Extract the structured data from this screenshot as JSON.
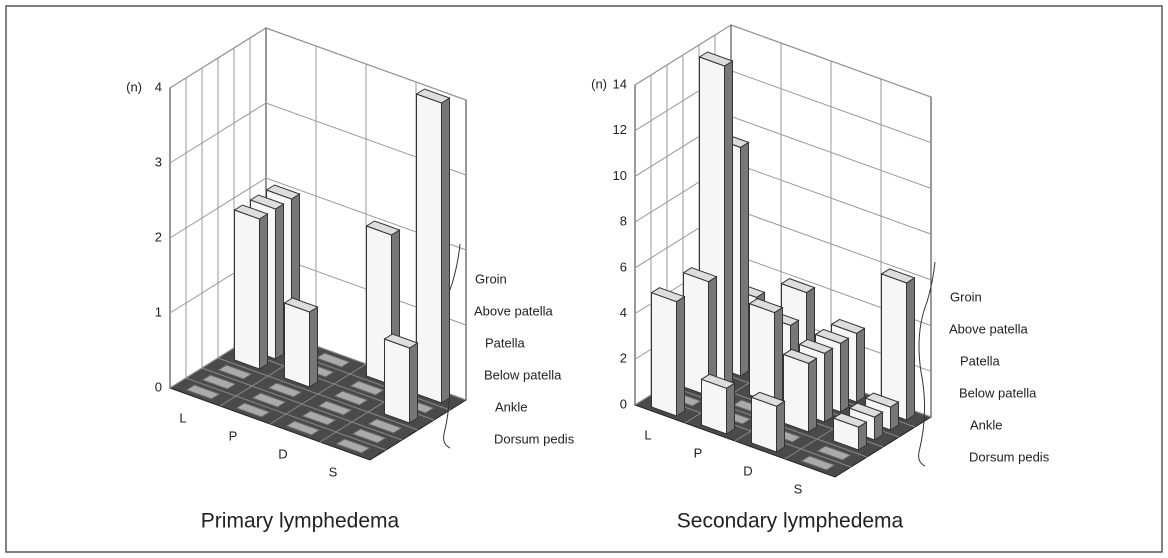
{
  "chart_data": [
    {
      "type": "bar3d",
      "title": "Primary lymphedema",
      "y_label": "(n)",
      "categories": [
        "L",
        "P",
        "D",
        "S"
      ],
      "depth_categories": [
        "Groin",
        "Above patella",
        "Patella",
        "Below patella",
        "Ankle",
        "Dorsum pedis"
      ],
      "values": [
        [
          2,
          2,
          2,
          0,
          0,
          0
        ],
        [
          0,
          0,
          1,
          0,
          0,
          0
        ],
        [
          2,
          0,
          0,
          0,
          0,
          0
        ],
        [
          4,
          0,
          1,
          0,
          0,
          0
        ]
      ],
      "ylim": [
        0,
        4
      ],
      "yticks": [
        0,
        1,
        2,
        3,
        4
      ],
      "grid": true
    },
    {
      "type": "bar3d",
      "title": "Secondary lymphedema",
      "y_label": "(n)",
      "categories": [
        "L",
        "P",
        "D",
        "S"
      ],
      "depth_categories": [
        "Groin",
        "Above patella",
        "Patella",
        "Below patella",
        "Ankle",
        "Dorsum pedis"
      ],
      "values": [
        [
          3,
          10,
          14,
          5,
          0,
          5
        ],
        [
          4,
          3,
          4,
          0,
          0,
          2
        ],
        [
          3,
          3,
          3,
          3,
          0,
          2
        ],
        [
          6,
          1,
          1,
          1,
          0,
          0
        ]
      ],
      "ylim": [
        0,
        14
      ],
      "yticks": [
        0,
        2,
        4,
        6,
        8,
        10,
        12,
        14
      ],
      "grid": true
    }
  ]
}
